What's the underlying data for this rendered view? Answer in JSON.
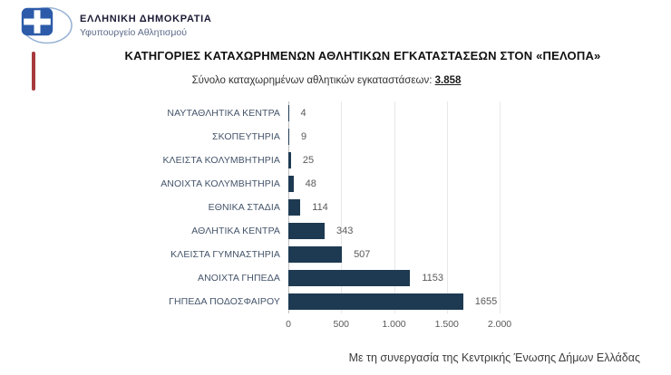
{
  "header": {
    "org_name": "ΕΛΛΗΝΙΚΗ ΔΗΜΟΚΡΑΤΙΑ",
    "org_sub": "Υφυπουργείο Αθλητισμού"
  },
  "chart_data": {
    "type": "bar",
    "orientation": "horizontal",
    "title": "ΚΑΤΗΓΟΡΙΕΣ ΚΑΤΑΧΩΡΗΜΕΝΩΝ ΑΘΛΗΤΙΚΩΝ ΕΓΚΑΤΑΣΤΑΣΕΩΝ ΣΤΟΝ «ΠΕΛΟΠΑ»",
    "subtitle_prefix": "Σύνολο καταχωρημένων αθλητικών εγκαταστάσεων: ",
    "subtitle_total": "3.858",
    "categories": [
      "ΝΑΥΤΑΘΛΗΤΙΚΑ ΚΕΝΤΡΑ",
      "ΣΚΟΠΕΥΤΗΡΙΑ",
      "ΚΛΕΙΣΤΑ ΚΟΛΥΜΒΗΤΗΡΙΑ",
      "ΑΝΟΙΧΤΑ ΚΟΛΥΜΒΗΤΗΡΙΑ",
      "ΕΘΝΙΚΑ ΣΤΑΔΙΑ",
      "ΑΘΛΗΤΙΚΑ ΚΕΝΤΡΑ",
      "ΚΛΕΙΣΤΑ ΓΥΜΝΑΣΤΗΡΙΑ",
      "ΑΝΟΙΧΤΑ ΓΗΠΕΔΑ",
      "ΓΗΠΕΔΑ ΠΟΔΟΣΦΑΙΡΟΥ"
    ],
    "values": [
      4,
      9,
      25,
      48,
      114,
      343,
      507,
      1153,
      1655
    ],
    "xlabel": "",
    "ylabel": "",
    "xlim": [
      0,
      2000
    ],
    "x_ticks": [
      "0",
      "500",
      "1.000",
      "1.500",
      "2.000"
    ],
    "x_tick_positions": [
      0,
      500,
      1000,
      1500,
      2000
    ],
    "grid": true,
    "legend": false,
    "bar_color": "#1e3a52",
    "value_label_color": "#595959"
  },
  "footer": {
    "text": "Με τη συνεργασία της Κεντρικής Ένωσης Δήμων Ελλάδας"
  },
  "colors": {
    "red_accent": "#a83a3e",
    "flag_blue": "#2d5ba9",
    "ellipse_blue": "#9ab4d6"
  }
}
